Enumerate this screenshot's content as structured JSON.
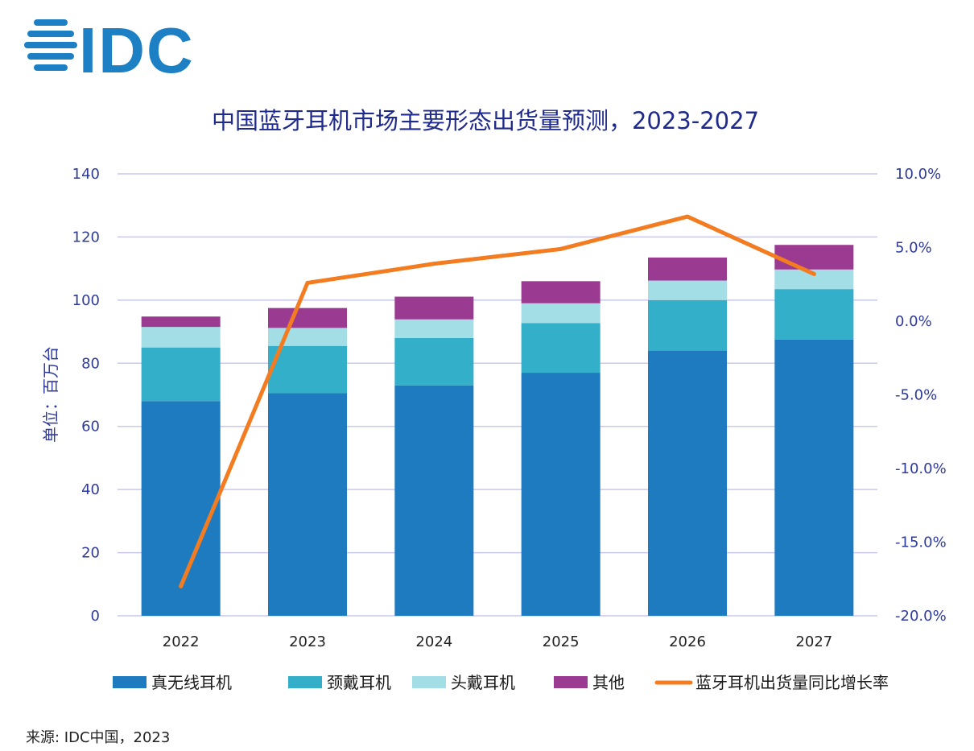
{
  "logo": {
    "text": "IDC"
  },
  "source": "来源: IDC中国，2023",
  "colors": {
    "accent_text": "#1f2a8c",
    "axis_text": "#2e3a9c",
    "grid": "#c8c8f0",
    "logo": "#1d7fc4"
  },
  "chart_data": {
    "type": "bar",
    "stacked": true,
    "title": "中国蓝牙耳机市场主要形态出货量预测，2023-2027",
    "ylabel": "单位：百万台",
    "categories": [
      "2022",
      "2023",
      "2024",
      "2025",
      "2026",
      "2027"
    ],
    "ylim": [
      0,
      140
    ],
    "yticks": [
      0,
      20,
      40,
      60,
      80,
      100,
      120,
      140
    ],
    "y2lim": [
      -20,
      10
    ],
    "y2ticks": [
      -20,
      -15,
      -10,
      -5,
      0,
      5,
      10
    ],
    "y2tick_labels": [
      "-20.0%",
      "-15.0%",
      "-10.0%",
      "-5.0%",
      "0.0%",
      "5.0%",
      "10.0%"
    ],
    "grid": true,
    "legend_position": "bottom",
    "series": [
      {
        "name": "真无线耳机",
        "color": "#1f7bbf",
        "values": [
          68,
          70.5,
          73,
          77,
          84,
          87.5
        ]
      },
      {
        "name": "颈戴耳机",
        "color": "#33afc9",
        "values": [
          17,
          15,
          15,
          15.7,
          16,
          16
        ]
      },
      {
        "name": "头戴耳机",
        "color": "#a3dde6",
        "values": [
          6.5,
          5.7,
          5.9,
          6.3,
          6.2,
          6.2
        ]
      },
      {
        "name": "其他",
        "color": "#9b3a91",
        "values": [
          3.3,
          6.3,
          7.2,
          7,
          7.3,
          7.8
        ]
      }
    ],
    "line_series": {
      "name": "蓝牙耳机出货量同比增长率",
      "color": "#f47c20",
      "axis": "right",
      "values": [
        -18.0,
        2.6,
        3.9,
        4.9,
        7.1,
        3.2
      ]
    }
  }
}
